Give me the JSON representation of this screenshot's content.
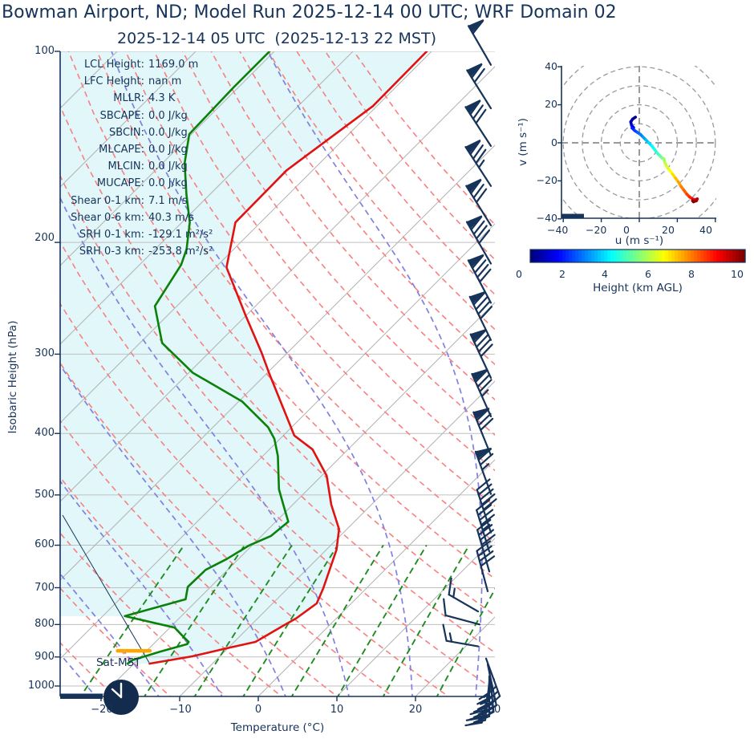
{
  "header": {
    "title": "Bowman Airport, ND; Model Run 2025-12-14 00 UTC; WRF Domain 02",
    "subtitle": "2025-12-14 05 UTC  (2025-12-13 22 MST)"
  },
  "colors": {
    "navy": "#16335a",
    "temperature_line": "#e01212",
    "dewpoint_line": "#0a820a",
    "fill_region": "#e1f7f9",
    "isotherm": "#b3b3b3",
    "pressure_gridline": "#c0c0c0",
    "dry_adiabat": "#f88080",
    "moist_adiabat": "#8080e0",
    "mixing_line": "#1e8c1e",
    "lcl_marker": "#ffa500",
    "hodo_grid": "#9a9a9a",
    "clock_face": "#132b4d",
    "clock_hands": "#ffffff"
  },
  "skewt": {
    "ylabel": "Isobaric Height (hPa)",
    "xlabel": "Temperature (°C)",
    "pressure_ticks": [
      "100",
      "200",
      "300",
      "400",
      "500",
      "600",
      "700",
      "800",
      "900",
      "1000"
    ],
    "temp_ticks": [
      "−20",
      "−10",
      "0",
      "10",
      "20",
      "30"
    ],
    "surface_label": "Sat-MST",
    "stats": [
      {
        "label": "LCL Height:",
        "value": "1169.0 m"
      },
      {
        "label": "LFC Height:",
        "value": "nan m"
      },
      {
        "label": "MLLR:",
        "value": "4.3 K"
      },
      {
        "label": "SBCAPE:",
        "value": "0.0 J/kg"
      },
      {
        "label": "SBCIN:",
        "value": "0.0 J/kg"
      },
      {
        "label": "MLCAPE:",
        "value": "0.0 J/kg"
      },
      {
        "label": "MLCIN:",
        "value": "0.0 J/kg"
      },
      {
        "label": "MUCAPE:",
        "value": "0.0 J/kg"
      },
      {
        "label": "Shear 0-1 km:",
        "value": "7.1 m/s"
      },
      {
        "label": "Shear 0-6 km:",
        "value": "40.3 m/s"
      },
      {
        "label": "SRH 0-1 km:",
        "value": "-129.1 m²/s²"
      },
      {
        "label": "SRH 0-3 km:",
        "value": "-253.8 m²/s²"
      }
    ]
  },
  "hodograph": {
    "xlabel": "u (m s⁻¹)",
    "ylabel": "v (m s⁻¹)",
    "xticks": [
      "−40",
      "−20",
      "0",
      "20",
      "40"
    ],
    "yticks": [
      "40",
      "20",
      "0",
      "−20",
      "−40"
    ],
    "colorbar_label": "Height (km AGL)",
    "colorbar_ticks": [
      "0",
      "2",
      "4",
      "6",
      "8",
      "10"
    ]
  },
  "chart_data": [
    {
      "type": "skewt",
      "pressure_range_hPa": [
        100,
        1050
      ],
      "temperature_range_C": [
        -25,
        30
      ],
      "isotherm_step_C": 10,
      "dry_adiabats_theta_C": {
        "start": -42,
        "end": 120,
        "step": 7
      },
      "moist_adiabats_start_C": {
        "start": -52,
        "end": 44,
        "step": 8
      },
      "mixing_ratios_g_per_kg": [
        0.6,
        1.2,
        2,
        3.2,
        5,
        7.5,
        11,
        17,
        25
      ],
      "mixing_line_top_hPa": 600,
      "temperature_profile": {
        "pressure_hPa": [
          100,
          122,
          154,
          186,
          219,
          261,
          299,
          321,
          403,
          424,
          466,
          518,
          566,
          610,
          701,
          741,
          782,
          803,
          852,
          872,
          898,
          922
        ],
        "temperature_C": [
          -60.6,
          -60.5,
          -63.3,
          -63.2,
          -58.6,
          -50.0,
          -43.2,
          -39.8,
          -28.6,
          -24.5,
          -19.4,
          -15.1,
          -11.0,
          -8.7,
          -5.5,
          -4.4,
          -5.1,
          -5.8,
          -7.3,
          -10.1,
          -13.5,
          -18.0
        ]
      },
      "dewpoint_profile": {
        "pressure_hPa": [
          100,
          114,
          135,
          150,
          168,
          186,
          205,
          217,
          252,
          288,
          321,
          356,
          391,
          408,
          434,
          490,
          518,
          551,
          580,
          601,
          631,
          656,
          698,
          730,
          776,
          809,
          833,
          852,
          859,
          883,
          910,
          922
        ],
        "dewpoint_C": [
          -80.6,
          -80.6,
          -80.3,
          -77.2,
          -73.0,
          -69.0,
          -66.0,
          -64.7,
          -62.8,
          -57.2,
          -49.5,
          -39.6,
          -33.0,
          -30.7,
          -28.1,
          -23.7,
          -21.2,
          -18.4,
          -18.8,
          -20.4,
          -21.5,
          -22.8,
          -22.9,
          -21.6,
          -27.2,
          -19.4,
          -17.4,
          -15.8,
          -15.7,
          -18.2,
          -20.6,
          -20.8
        ]
      },
      "lcl_marker": {
        "pressure_hPa": 880,
        "temp_from_C": -23.7,
        "temp_to_C": -19.6
      },
      "wind_barbs": [
        {
          "p": 105,
          "x": 612,
          "rot": -30,
          "pen": 1,
          "full": 1,
          "half": 0,
          "len": 56
        },
        {
          "p": 123,
          "x": 612,
          "rot": -32,
          "pen": 1,
          "full": 2,
          "half": 0,
          "len": 56
        },
        {
          "p": 141,
          "x": 612,
          "rot": -33,
          "pen": 1,
          "full": 3,
          "half": 0,
          "len": 58
        },
        {
          "p": 163,
          "x": 612,
          "rot": -33,
          "pen": 1,
          "full": 3,
          "half": 1,
          "len": 58
        },
        {
          "p": 188,
          "x": 612,
          "rot": -32,
          "pen": 1,
          "full": 3,
          "half": 0,
          "len": 58
        },
        {
          "p": 216,
          "x": 612,
          "rot": -30,
          "pen": 1,
          "full": 4,
          "half": 0,
          "len": 60
        },
        {
          "p": 249,
          "x": 612,
          "rot": -28,
          "pen": 1,
          "full": 4,
          "half": 0,
          "len": 60
        },
        {
          "p": 285,
          "x": 612,
          "rot": -26,
          "pen": 1,
          "full": 4,
          "half": 0,
          "len": 60
        },
        {
          "p": 327,
          "x": 612,
          "rot": -25,
          "pen": 1,
          "full": 4,
          "half": 0,
          "len": 60
        },
        {
          "p": 376,
          "x": 612,
          "rot": -24,
          "pen": 1,
          "full": 3,
          "half": 1,
          "len": 58
        },
        {
          "p": 433,
          "x": 612,
          "rot": -22,
          "pen": 1,
          "full": 3,
          "half": 0,
          "len": 58
        },
        {
          "p": 498,
          "x": 612,
          "rot": -20,
          "pen": 1,
          "full": 2,
          "half": 1,
          "len": 56
        },
        {
          "p": 573,
          "x": 612,
          "rot": -18,
          "pen": 0,
          "full": 5,
          "half": 0,
          "len": 56
        },
        {
          "p": 614,
          "x": 610,
          "rot": -17,
          "pen": 0,
          "full": 4,
          "half": 1,
          "len": 54
        },
        {
          "p": 660,
          "x": 610,
          "rot": -16,
          "pen": 0,
          "full": 4,
          "half": 0,
          "len": 54
        },
        {
          "p": 709,
          "x": 608,
          "rot": -15,
          "pen": 0,
          "full": 4,
          "half": 0,
          "len": 52
        },
        {
          "p": 763,
          "x": 596,
          "rot": -60,
          "pen": 0,
          "full": 1,
          "half": 1,
          "len": 42
        },
        {
          "p": 800,
          "x": 598,
          "rot": -75,
          "pen": 0,
          "full": 1,
          "half": 0,
          "len": 44
        },
        {
          "p": 866,
          "x": 596,
          "rot": -80,
          "pen": 0,
          "full": 1,
          "half": 1,
          "len": 40
        },
        {
          "p": 905,
          "x": 606,
          "rot": 160,
          "pen": 0,
          "full": 3,
          "half": 0,
          "len": 50
        },
        {
          "p": 925,
          "x": 608,
          "rot": 168,
          "pen": 0,
          "full": 4,
          "half": 0,
          "len": 52
        },
        {
          "p": 945,
          "x": 610,
          "rot": 174,
          "pen": 0,
          "full": 4,
          "half": 0,
          "len": 52
        },
        {
          "p": 965,
          "x": 610,
          "rot": 180,
          "pen": 0,
          "full": 3,
          "half": 1,
          "len": 50
        },
        {
          "p": 985,
          "x": 610,
          "rot": 186,
          "pen": 0,
          "full": 3,
          "half": 0,
          "len": 48
        },
        {
          "p": 1005,
          "x": 610,
          "rot": 192,
          "pen": 0,
          "full": 2,
          "half": 0,
          "len": 45
        }
      ]
    },
    {
      "type": "hodograph",
      "u_range": [
        -40,
        40
      ],
      "v_range": [
        -40,
        40
      ],
      "ring_spacing": 10,
      "trace": {
        "u": [
          -2,
          -3.5,
          -4.5,
          -4,
          -3,
          -3.8,
          -2.5,
          -1,
          0.5,
          2,
          3.5,
          5,
          6.5,
          8,
          9.5,
          11,
          12,
          13,
          13.5,
          14.5,
          16,
          17.5,
          19,
          20.5,
          22,
          23.5,
          25,
          26.5,
          28,
          29.5,
          30.5,
          30,
          28.5,
          28
        ],
        "v": [
          13.5,
          12.5,
          11,
          9,
          8,
          7.8,
          6.5,
          5.5,
          4.5,
          3,
          1.5,
          0,
          -1.5,
          -3.5,
          -5.5,
          -7,
          -8,
          -8.5,
          -10.5,
          -12.5,
          -14.5,
          -16.5,
          -18.5,
          -20.5,
          -23,
          -25,
          -27,
          -28.5,
          -29.5,
          -30,
          -29.5,
          -30.5,
          -31,
          -30.5
        ],
        "height_km_min": 0,
        "height_km_max": 10
      },
      "colorbar": {
        "min": 0,
        "max": 10,
        "colormap": "jet"
      }
    }
  ]
}
